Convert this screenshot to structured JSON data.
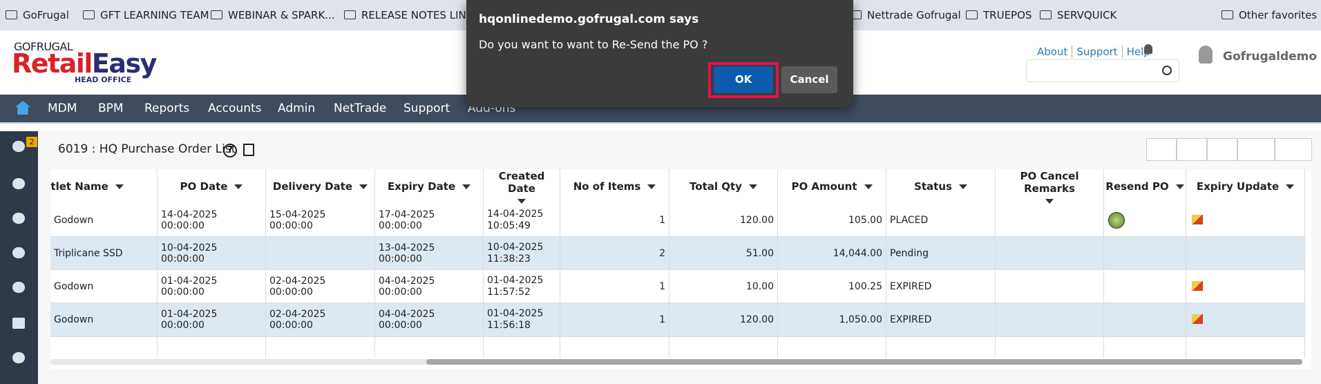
{
  "bookmarks": [
    "GoFrugal",
    "GFT LEARNING TEAM",
    "WEBINAR & SPARK...",
    "RELEASE NOTES LIN...",
    "Nettrade Gofrugal",
    "TRUEPOS",
    "SERVQUICK"
  ],
  "other_favorites": "Other favorites",
  "header": {
    "logo_brand": "GOFRUGAL",
    "logo_retail": "Retail",
    "logo_easy": "Easy",
    "logo_sub": "HEAD OFFICE",
    "links": [
      "About",
      "Support",
      "Help"
    ],
    "user": "Gofrugaldemo"
  },
  "nav": [
    "MDM",
    "BPM",
    "Reports",
    "Accounts",
    "Admin",
    "NetTrade",
    "Support",
    "Add-ons"
  ],
  "filter_badge": "2",
  "page_title": "6019 : HQ Purchase Order List",
  "table": {
    "columns": [
      "Outlet Name",
      "PO Date",
      "Delivery Date",
      "Expiry Date",
      "Created Date",
      "No of Items",
      "Total Qty",
      "PO Amount",
      "Status",
      "PO Cancel Remarks",
      "Resend PO",
      "Expiry Update"
    ],
    "rows": [
      {
        "cells": [
          "Godown",
          "14-04-2025 00:00:00",
          "15-04-2025 00:00:00",
          "17-04-2025 00:00:00",
          "14-04-2025 10:05:49",
          "1",
          "120.00",
          "105.00",
          "PLACED",
          null
        ],
        "resend": true,
        "expiry_update": true
      },
      {
        "cells": [
          "Triplicane SSD",
          "10-04-2025 00:00:00",
          null,
          "13-04-2025 00:00:00",
          "10-04-2025 11:38:23",
          "2",
          "51.00",
          "14,044.00",
          "Pending",
          null
        ],
        "resend": false,
        "expiry_update": false
      },
      {
        "cells": [
          "Godown",
          "01-04-2025 00:00:00",
          "02-04-2025 00:00:00",
          "04-04-2025 00:00:00",
          "01-04-2025 11:57:52",
          "1",
          "10.00",
          "100.25",
          "EXPIRED",
          null
        ],
        "resend": false,
        "expiry_update": true
      },
      {
        "cells": [
          "Godown",
          "01-04-2025 00:00:00",
          "02-04-2025 00:00:00",
          "04-04-2025 00:00:00",
          "01-04-2025 11:56:18",
          "1",
          "120.00",
          "1,050.00",
          "EXPIRED",
          null
        ],
        "resend": false,
        "expiry_update": true
      }
    ]
  },
  "dialog": {
    "title": "hqonlinedemo.gofrugal.com says",
    "message": "Do you want to want to Re-Send the PO ?",
    "ok": "OK",
    "cancel": "Cancel"
  }
}
